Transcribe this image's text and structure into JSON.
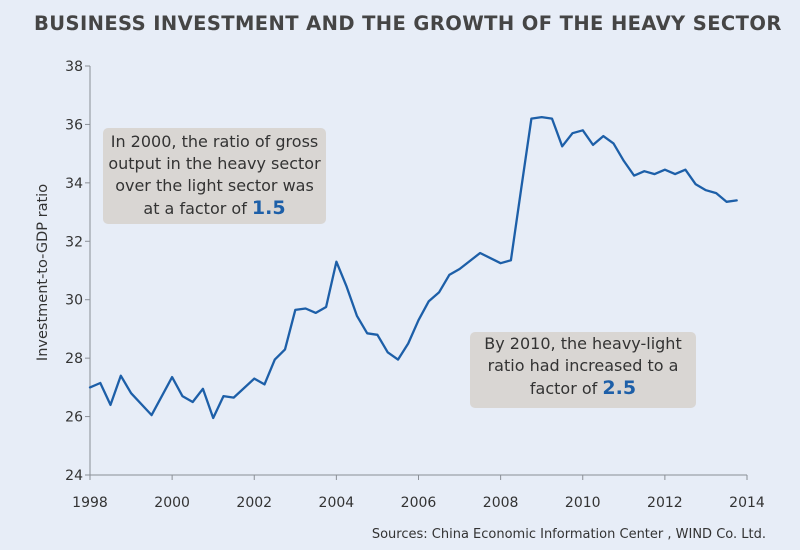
{
  "title": "BUSINESS INVESTMENT AND THE GROWTH OF THE HEAVY SECTOR",
  "source": "Sources: China Economic Information Center , WIND  Co. Ltd.",
  "annotations": [
    {
      "lines": [
        "In 2000, the ratio of gross",
        "output in the heavy sector",
        "over the light sector was"
      ],
      "prefix": "at a factor of ",
      "value": "1.5"
    },
    {
      "lines": [
        "By 2010, the heavy-light",
        "ratio had increased to a"
      ],
      "prefix": "factor of ",
      "value": "2.5"
    }
  ],
  "colors": {
    "line": "#1d5fa8",
    "accent": "#1d5fa8",
    "callout_bg": "#d9d6d3"
  },
  "chart_data": {
    "type": "line",
    "title": "BUSINESS INVESTMENT AND THE GROWTH OF THE HEAVY SECTOR",
    "xlabel": "",
    "ylabel": "Investment-to-GDP ratio",
    "xlim": [
      1998,
      2014
    ],
    "ylim": [
      24,
      38
    ],
    "xticks": [
      1998,
      2000,
      2002,
      2004,
      2006,
      2008,
      2010,
      2012,
      2014
    ],
    "yticks": [
      24,
      26,
      28,
      30,
      32,
      34,
      36,
      38
    ],
    "grid": false,
    "series": [
      {
        "name": "Investment-to-GDP ratio",
        "x": [
          1998.0,
          1998.25,
          1998.5,
          1998.75,
          1999.0,
          1999.5,
          2000.0,
          2000.25,
          2000.5,
          2000.75,
          2001.0,
          2001.25,
          2001.5,
          2002.0,
          2002.25,
          2002.5,
          2002.75,
          2003.0,
          2003.25,
          2003.5,
          2003.75,
          2004.0,
          2004.25,
          2004.5,
          2004.75,
          2005.0,
          2005.25,
          2005.5,
          2005.75,
          2006.0,
          2006.25,
          2006.5,
          2006.75,
          2007.0,
          2007.5,
          2008.0,
          2008.25,
          2008.5,
          2008.75,
          2009.0,
          2009.25,
          2009.5,
          2009.75,
          2010.0,
          2010.25,
          2010.5,
          2010.75,
          2011.0,
          2011.25,
          2011.5,
          2011.75,
          2012.0,
          2012.25,
          2012.5,
          2012.75,
          2013.0,
          2013.25,
          2013.5,
          2013.75
        ],
        "values": [
          27.0,
          27.15,
          26.4,
          27.4,
          26.8,
          26.05,
          27.35,
          26.7,
          26.5,
          26.95,
          25.95,
          26.7,
          26.65,
          27.3,
          27.1,
          27.95,
          28.3,
          29.65,
          29.7,
          29.55,
          29.75,
          31.3,
          30.45,
          29.45,
          28.85,
          28.8,
          28.2,
          27.95,
          28.5,
          29.3,
          29.95,
          30.25,
          30.85,
          31.05,
          31.6,
          31.25,
          31.35,
          33.8,
          36.2,
          36.25,
          36.2,
          35.25,
          35.7,
          35.8,
          35.3,
          35.6,
          35.35,
          34.75,
          34.25,
          34.4,
          34.3,
          34.45,
          34.3,
          34.45,
          33.95,
          33.75,
          33.65,
          33.35,
          33.4
        ]
      }
    ]
  }
}
